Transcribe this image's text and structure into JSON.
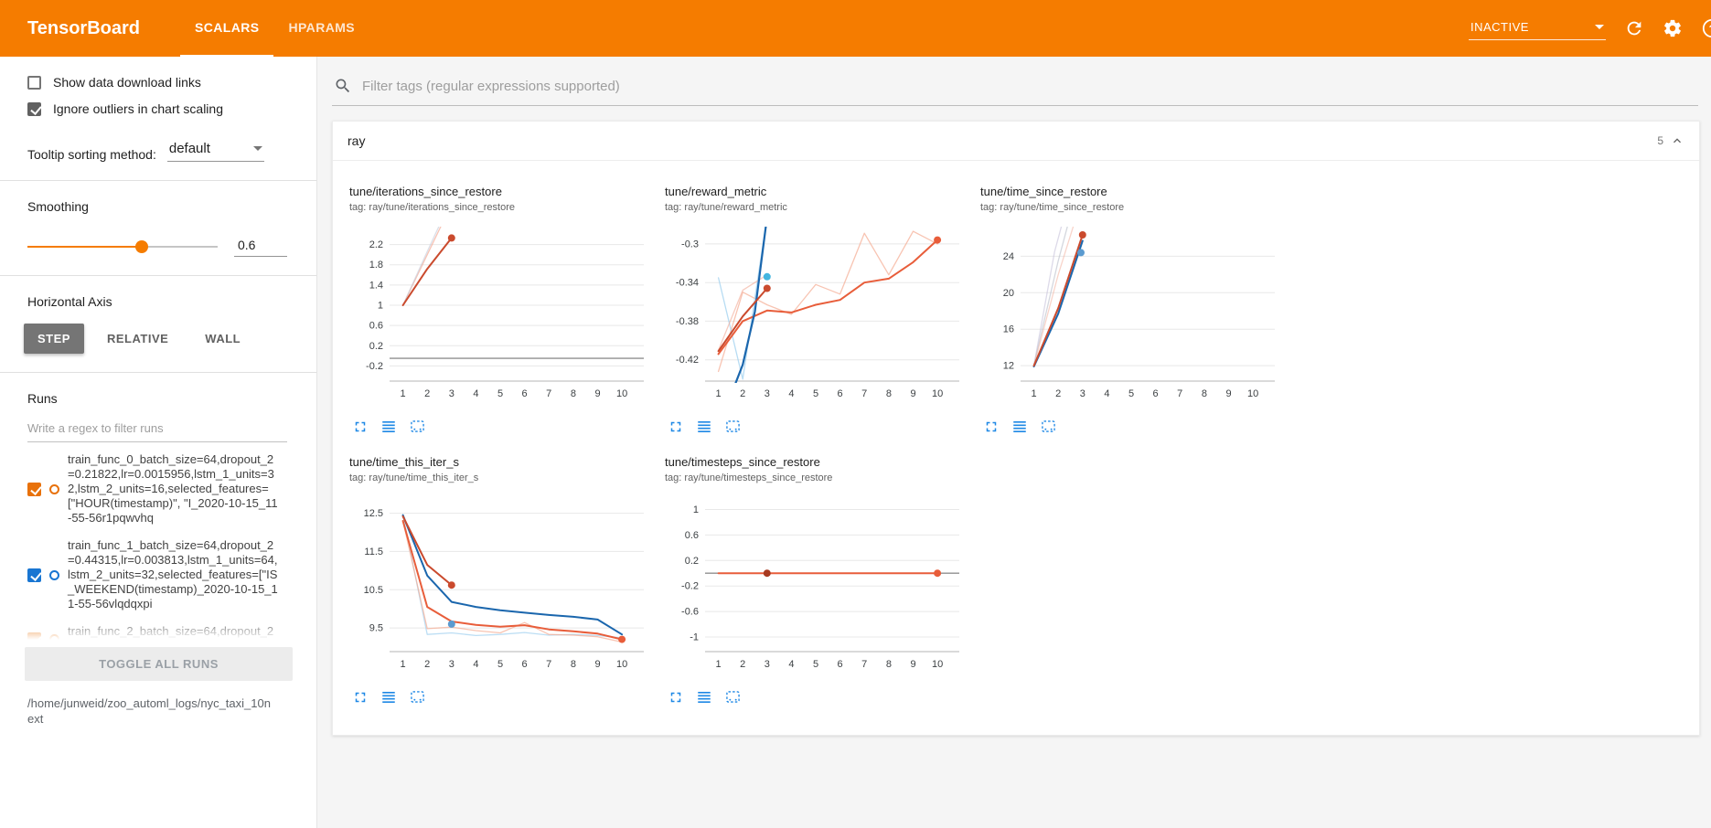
{
  "colors": {
    "header_bg": "#f57c00",
    "accent_blue": "#1e88e5",
    "run_orange": "#e8710a",
    "run_blue": "#1976d2",
    "step_button_bg": "#757575"
  },
  "icons": {
    "search": "search-icon",
    "refresh": "refresh-icon",
    "settings": "gear-icon",
    "help": "help-icon",
    "status_caret": "chevron-down-icon",
    "group_collapse": "chevron-up-icon",
    "chart_tools": [
      "fullscreen-icon",
      "runs-list-icon",
      "fit-domain-icon"
    ]
  },
  "header": {
    "title": "TensorBoard",
    "tabs": [
      {
        "label": "SCALARS",
        "active": true
      },
      {
        "label": "HPARAMS",
        "active": false
      }
    ],
    "status_dropdown": "INACTIVE"
  },
  "sidebar": {
    "options": [
      {
        "label": "Show data download links",
        "checked": false
      },
      {
        "label": "Ignore outliers in chart scaling",
        "checked": true
      }
    ],
    "tooltip_sorting": {
      "label": "Tooltip sorting method:",
      "value": "default"
    },
    "smoothing": {
      "label": "Smoothing",
      "value": 0.6
    },
    "horizontal_axis": {
      "label": "Horizontal Axis",
      "options": [
        "STEP",
        "RELATIVE",
        "WALL"
      ],
      "selected": "STEP"
    },
    "runs": {
      "label": "Runs",
      "filter_placeholder": "Write a regex to filter runs",
      "items": [
        {
          "label": "train_func_0_batch_size=64,dropout_2=0.21822,lr=0.0015956,lstm_1_units=32,lstm_2_units=16,selected_features=[\"HOUR(timestamp)\", \"I_2020-10-15_11-55-56r1pqwvhq",
          "checked": true,
          "color": "#e8710a"
        },
        {
          "label": "train_func_1_batch_size=64,dropout_2=0.44315,lr=0.003813,lstm_1_units=64,lstm_2_units=32,selected_features=[\"IS_WEEKEND(timestamp)_2020-10-15_11-55-56vlqdqxpi",
          "checked": true,
          "color": "#1976d2"
        },
        {
          "label": "train_func_2_batch_size=64,dropout_2=",
          "checked": true,
          "color": "#e8710a"
        }
      ],
      "toggle_all_label": "TOGGLE ALL RUNS",
      "log_dir": "/home/junweid/zoo_automl_logs/nyc_taxi_10next"
    }
  },
  "main": {
    "tag_filter_placeholder": "Filter tags (regular expressions supported)",
    "group": {
      "title": "ray",
      "count": 5
    }
  },
  "chart_data": [
    {
      "type": "line",
      "title": "tune/iterations_since_restore",
      "subtitle": "tag: ray/tune/iterations_since_restore",
      "xlim": [
        0.45,
        10.9
      ],
      "ylim": [
        -0.5,
        2.5
      ],
      "xticks": [
        1,
        2,
        3,
        4,
        5,
        6,
        7,
        8,
        9,
        10
      ],
      "yticks": [
        -0.2,
        0.2,
        0.6,
        1,
        1.4,
        1.8,
        2.2
      ],
      "series": [
        {
          "name": "train_func_0_raw",
          "color": "#f4a58e",
          "width": 1.3,
          "opacity": 0.65,
          "points": [
            [
              1,
              1
            ],
            [
              2,
              2
            ],
            [
              3,
              3
            ]
          ]
        },
        {
          "name": "train_func_1_raw",
          "color": "#c3cad8",
          "width": 1.3,
          "opacity": 0.6,
          "points": [
            [
              1,
              1
            ],
            [
              2,
              2.06
            ],
            [
              3,
              3.1
            ]
          ]
        },
        {
          "name": "constant_zero_run",
          "color": "#8f8f8f",
          "width": 1.4,
          "opacity": 1,
          "points": [
            [
              0.45,
              -0.05
            ],
            [
              10.9,
              -0.05
            ]
          ]
        },
        {
          "name": "train_func_0",
          "color": "#ca4a2d",
          "width": 2,
          "opacity": 1,
          "points": [
            [
              1,
              1
            ],
            [
              2,
              1.72
            ],
            [
              3,
              2.33
            ]
          ],
          "end_dot": true
        }
      ],
      "dots": []
    },
    {
      "type": "line",
      "title": "tune/reward_metric",
      "subtitle": "tag: ray/tune/reward_metric",
      "xlim": [
        0.45,
        10.9
      ],
      "ylim": [
        -0.442,
        -0.285
      ],
      "xticks": [
        1,
        2,
        3,
        4,
        5,
        6,
        7,
        8,
        9,
        10
      ],
      "yticks": [
        -0.42,
        -0.38,
        -0.34,
        -0.3
      ],
      "series": [
        {
          "name": "train_func_2_raw",
          "color": "#f5ab92",
          "width": 1.3,
          "opacity": 0.7,
          "points": [
            [
              1,
              -0.432
            ],
            [
              2,
              -0.35
            ],
            [
              3,
              -0.363
            ],
            [
              4,
              -0.373
            ],
            [
              5,
              -0.342
            ],
            [
              6,
              -0.352
            ],
            [
              7,
              -0.289
            ],
            [
              8,
              -0.332
            ],
            [
              9,
              -0.287
            ],
            [
              10,
              -0.3
            ]
          ]
        },
        {
          "name": "train_func_1_raw",
          "color": "#9fd0ef",
          "width": 1.3,
          "opacity": 0.75,
          "points": [
            [
              1,
              -0.335
            ],
            [
              2,
              -0.44
            ],
            [
              3,
              -0.272
            ]
          ]
        },
        {
          "name": "train_func_0_raw",
          "color": "#f2a894",
          "width": 1.3,
          "opacity": 0.6,
          "points": [
            [
              1,
              -0.41
            ],
            [
              2,
              -0.348
            ],
            [
              3,
              -0.332
            ]
          ]
        },
        {
          "name": "train_func_2",
          "color": "#e85d3a",
          "width": 2,
          "opacity": 1,
          "points": [
            [
              1,
              -0.414
            ],
            [
              2,
              -0.38
            ],
            [
              3,
              -0.369
            ],
            [
              4,
              -0.371
            ],
            [
              5,
              -0.363
            ],
            [
              6,
              -0.358
            ],
            [
              7,
              -0.34
            ],
            [
              8,
              -0.336
            ],
            [
              9,
              -0.319
            ],
            [
              10,
              -0.296
            ]
          ],
          "end_dot": true
        },
        {
          "name": "train_func_1",
          "color": "#1a66ad",
          "width": 2.2,
          "opacity": 1,
          "points": [
            [
              1,
              -0.49
            ],
            [
              2,
              -0.425
            ],
            [
              2.5,
              -0.37
            ],
            [
              3,
              -0.272
            ]
          ]
        },
        {
          "name": "train_func_0",
          "color": "#ca4a2d",
          "width": 2,
          "opacity": 1,
          "points": [
            [
              1,
              -0.411
            ],
            [
              2,
              -0.375
            ],
            [
              3,
              -0.346
            ]
          ],
          "end_dot": true
        }
      ],
      "dots": [
        {
          "color": "#45b6e0",
          "x": 3,
          "y": -0.334
        }
      ]
    },
    {
      "type": "line",
      "title": "tune/time_since_restore",
      "subtitle": "tag: ray/tune/time_since_restore",
      "xlim": [
        0.45,
        10.9
      ],
      "ylim": [
        10.3,
        26.95
      ],
      "xticks": [
        1,
        2,
        3,
        4,
        5,
        6,
        7,
        8,
        9,
        10
      ],
      "yticks": [
        12,
        16,
        20,
        24
      ],
      "series": [
        {
          "name": "raw_a",
          "color": "#c7c2da",
          "width": 1.3,
          "opacity": 0.6,
          "points": [
            [
              1,
              12
            ],
            [
              1.85,
              24.5
            ],
            [
              2.2,
              28
            ]
          ]
        },
        {
          "name": "raw_b",
          "color": "#bdc2cc",
          "width": 1.3,
          "opacity": 0.65,
          "points": [
            [
              1,
              12.1
            ],
            [
              2,
              23.5
            ],
            [
              2.45,
              28
            ]
          ]
        },
        {
          "name": "raw_c",
          "color": "#f2b09e",
          "width": 1.3,
          "opacity": 0.55,
          "points": [
            [
              1,
              12
            ],
            [
              2,
              22
            ],
            [
              2.7,
              28
            ]
          ]
        },
        {
          "name": "train_func_1",
          "color": "#1a66ad",
          "width": 2,
          "opacity": 1,
          "points": [
            [
              1,
              11.9
            ],
            [
              2,
              17.7
            ],
            [
              3,
              25.7
            ]
          ]
        },
        {
          "name": "train_func_0",
          "color": "#ca4a2d",
          "width": 2,
          "opacity": 1,
          "points": [
            [
              1,
              12
            ],
            [
              2,
              18.3
            ],
            [
              3,
              26.35
            ]
          ],
          "end_dot": true
        }
      ],
      "dots": [
        {
          "color": "#5b9bd0",
          "x": 2.93,
          "y": 24.4
        }
      ]
    },
    {
      "type": "line",
      "title": "tune/time_this_iter_s",
      "subtitle": "tag: ray/tune/time_this_iter_s",
      "xlim": [
        0.45,
        10.9
      ],
      "ylim": [
        8.88,
        12.85
      ],
      "xticks": [
        1,
        2,
        3,
        4,
        5,
        6,
        7,
        8,
        9,
        10
      ],
      "yticks": [
        9.5,
        10.5,
        11.5,
        12.5
      ],
      "series": [
        {
          "name": "train_func_1_raw",
          "color": "#9fd0ef",
          "width": 1.3,
          "opacity": 0.7,
          "points": [
            [
              1,
              12.45
            ],
            [
              2,
              9.33
            ],
            [
              3,
              9.37
            ],
            [
              4,
              9.3
            ],
            [
              5,
              9.33
            ],
            [
              6,
              9.38
            ],
            [
              7,
              9.31
            ],
            [
              8,
              9.33
            ],
            [
              9,
              9.3
            ],
            [
              10,
              9.24
            ]
          ]
        },
        {
          "name": "train_func_2_raw",
          "color": "#f5ab92",
          "width": 1.3,
          "opacity": 0.7,
          "points": [
            [
              1,
              12.3
            ],
            [
              2,
              9.48
            ],
            [
              3,
              9.52
            ],
            [
              4,
              9.43
            ],
            [
              5,
              9.37
            ],
            [
              6,
              9.64
            ],
            [
              7,
              9.33
            ],
            [
              8,
              9.31
            ],
            [
              9,
              9.27
            ],
            [
              10,
              9.13
            ]
          ]
        },
        {
          "name": "train_func_1",
          "color": "#1a66ad",
          "width": 2,
          "opacity": 1,
          "points": [
            [
              1,
              12.45
            ],
            [
              2,
              10.87
            ],
            [
              3,
              10.18
            ],
            [
              4,
              10.05
            ],
            [
              5,
              9.96
            ],
            [
              6,
              9.9
            ],
            [
              7,
              9.84
            ],
            [
              8,
              9.79
            ],
            [
              9,
              9.72
            ],
            [
              10,
              9.33
            ]
          ]
        },
        {
          "name": "train_func_2",
          "color": "#e85d3a",
          "width": 2,
          "opacity": 1,
          "points": [
            [
              1,
              12.3
            ],
            [
              2,
              10.05
            ],
            [
              3,
              9.67
            ],
            [
              4,
              9.58
            ],
            [
              5,
              9.53
            ],
            [
              6,
              9.57
            ],
            [
              7,
              9.46
            ],
            [
              8,
              9.41
            ],
            [
              9,
              9.35
            ],
            [
              10,
              9.2
            ]
          ],
          "end_dot": true
        },
        {
          "name": "train_func_0",
          "color": "#ca4a2d",
          "width": 2,
          "opacity": 1,
          "points": [
            [
              1,
              12.42
            ],
            [
              2,
              11.15
            ],
            [
              3,
              10.62
            ]
          ],
          "end_dot": true
        }
      ],
      "dots": [
        {
          "color": "#5b9bd0",
          "x": 3,
          "y": 9.6
        }
      ]
    },
    {
      "type": "line",
      "title": "tune/timesteps_since_restore",
      "subtitle": "tag: ray/tune/timesteps_since_restore",
      "xlim": [
        0.45,
        10.9
      ],
      "ylim": [
        -1.23,
        1.15
      ],
      "xticks": [
        1,
        2,
        3,
        4,
        5,
        6,
        7,
        8,
        9,
        10
      ],
      "yticks": [
        -1,
        -0.6,
        -0.2,
        0.2,
        0.6,
        1
      ],
      "series": [
        {
          "name": "constant_zero_run",
          "color": "#8f8f8f",
          "width": 1.4,
          "opacity": 1,
          "points": [
            [
              0.45,
              0
            ],
            [
              10.9,
              0
            ]
          ]
        },
        {
          "name": "train_func_2",
          "color": "#e85d3a",
          "width": 2,
          "opacity": 1,
          "points": [
            [
              1,
              0
            ],
            [
              10,
              0
            ]
          ],
          "end_dot": true
        }
      ],
      "dots": [
        {
          "color": "#a83a20",
          "x": 3,
          "y": 0
        }
      ]
    }
  ]
}
